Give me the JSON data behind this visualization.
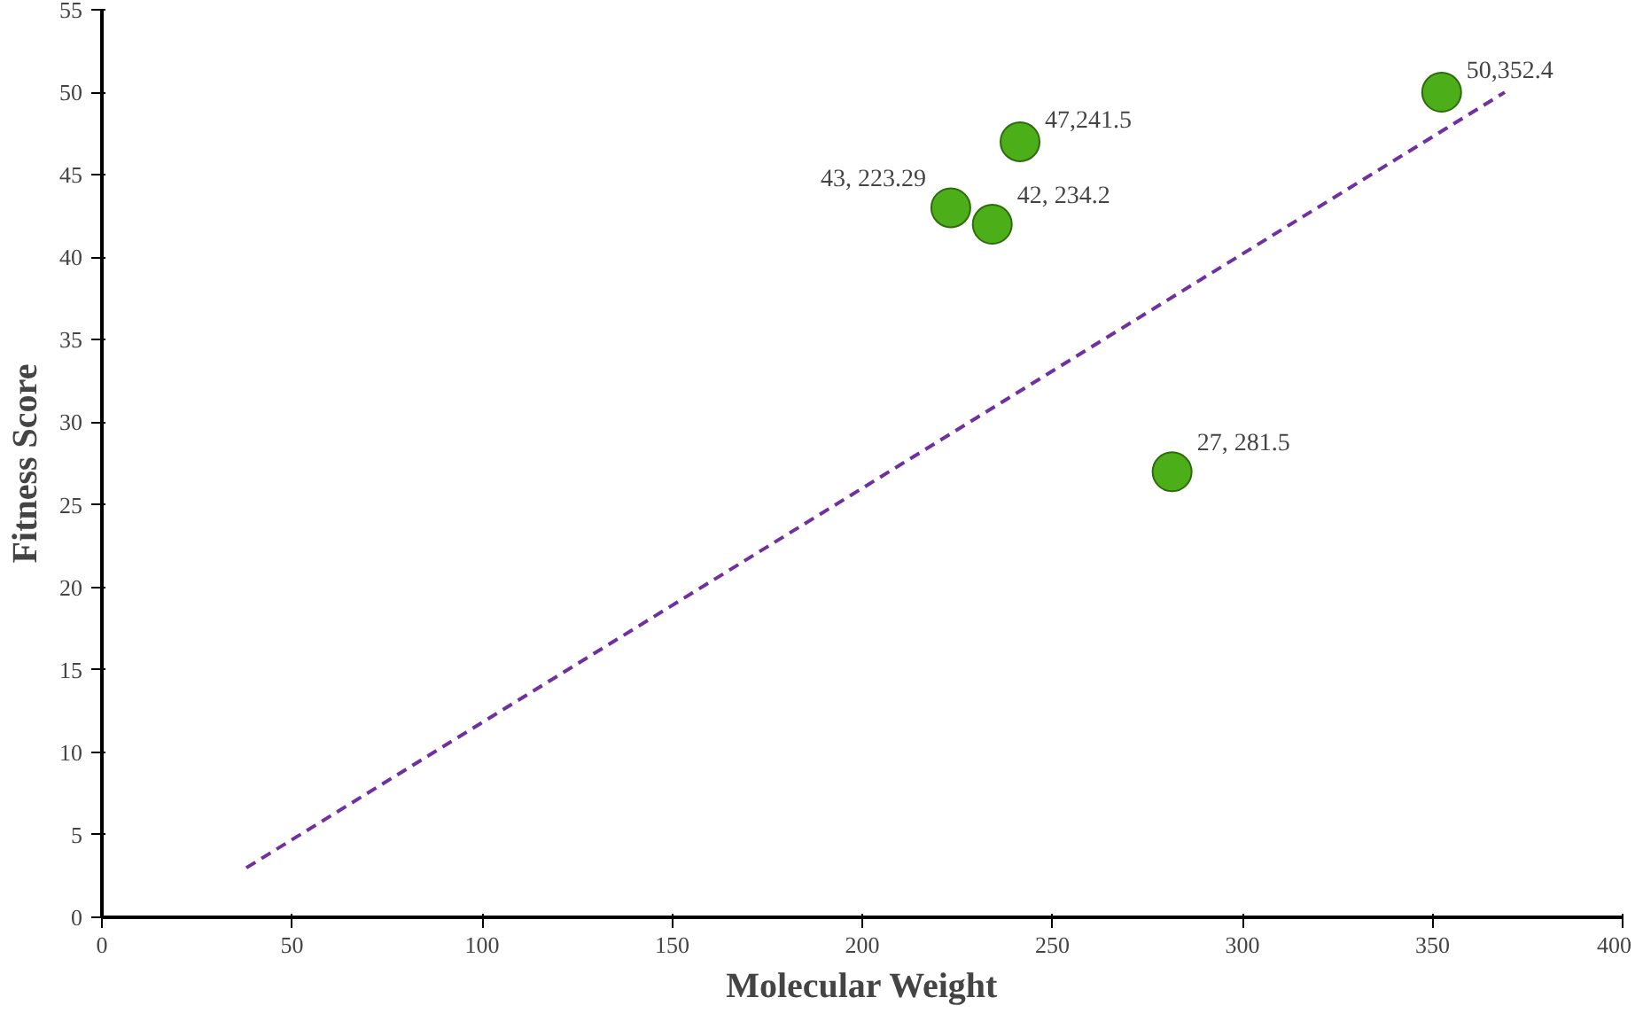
{
  "chart_data": {
    "type": "scatter",
    "xlabel": "Molecular Weight",
    "ylabel": "Fitness Score",
    "xlim": [
      0,
      400
    ],
    "xticks": [
      0,
      50,
      100,
      150,
      200,
      250,
      300,
      350,
      400
    ],
    "ylim": [
      0,
      55
    ],
    "yticks": [
      0,
      5,
      10,
      15,
      20,
      25,
      30,
      35,
      40,
      45,
      50,
      55
    ],
    "grid": false,
    "series": [
      {
        "color": "#4caf1a",
        "marker": "circle",
        "x": [
          223.29,
          234.2,
          241.5,
          281.5,
          352.4
        ],
        "values": [
          43,
          42,
          47,
          27,
          50
        ]
      },
      {
        "type": "line",
        "color": "#7030a0",
        "line_style": "dashed",
        "x": [
          38,
          369
        ],
        "values": [
          3,
          50
        ]
      }
    ],
    "annotations": [
      {
        "text": "43, 223.29",
        "x": 223.29,
        "y": 43
      },
      {
        "text": "42, 234.2",
        "x": 234.2,
        "y": 42
      },
      {
        "text": "47,241.5",
        "x": 241.5,
        "y": 47
      },
      {
        "text": "27, 281.5",
        "x": 281.5,
        "y": 27
      },
      {
        "text": "50,352.4",
        "x": 352.4,
        "y": 50
      }
    ]
  }
}
